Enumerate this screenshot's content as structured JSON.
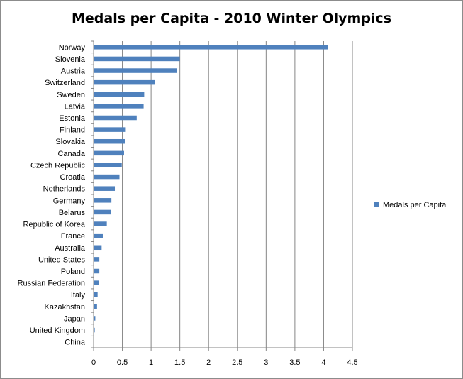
{
  "chart_data": {
    "type": "bar",
    "orientation": "horizontal",
    "title": "Medals per Capita - 2010 Winter Olympics",
    "xlabel": "",
    "ylabel": "",
    "categories": [
      "Norway",
      "Slovenia",
      "Austria",
      "Switzerland",
      "Sweden",
      "Latvia",
      "Estonia",
      "Finland",
      "Slovakia",
      "Canada",
      "Czech Republic",
      "Croatia",
      "Netherlands",
      "Germany",
      "Belarus",
      "Republic of Korea",
      "France",
      "Australia",
      "United States",
      "Poland",
      "Russian Federation",
      "Italy",
      "Kazakhstan",
      "Japan",
      "United Kingdom",
      "China"
    ],
    "series": [
      {
        "name": "Medals per Capita",
        "color": "#4f81bd",
        "values": [
          4.07,
          1.5,
          1.45,
          1.07,
          0.88,
          0.87,
          0.75,
          0.56,
          0.55,
          0.53,
          0.49,
          0.45,
          0.37,
          0.31,
          0.3,
          0.23,
          0.16,
          0.14,
          0.1,
          0.1,
          0.09,
          0.07,
          0.06,
          0.03,
          0.02,
          0.01
        ]
      }
    ],
    "xlim": [
      0,
      4.5
    ],
    "x_ticks": [
      "0",
      "0.5",
      "1",
      "1.5",
      "2",
      "2.5",
      "3",
      "3.5",
      "4",
      "4.5"
    ],
    "grid": "vertical major",
    "legend": "right"
  }
}
